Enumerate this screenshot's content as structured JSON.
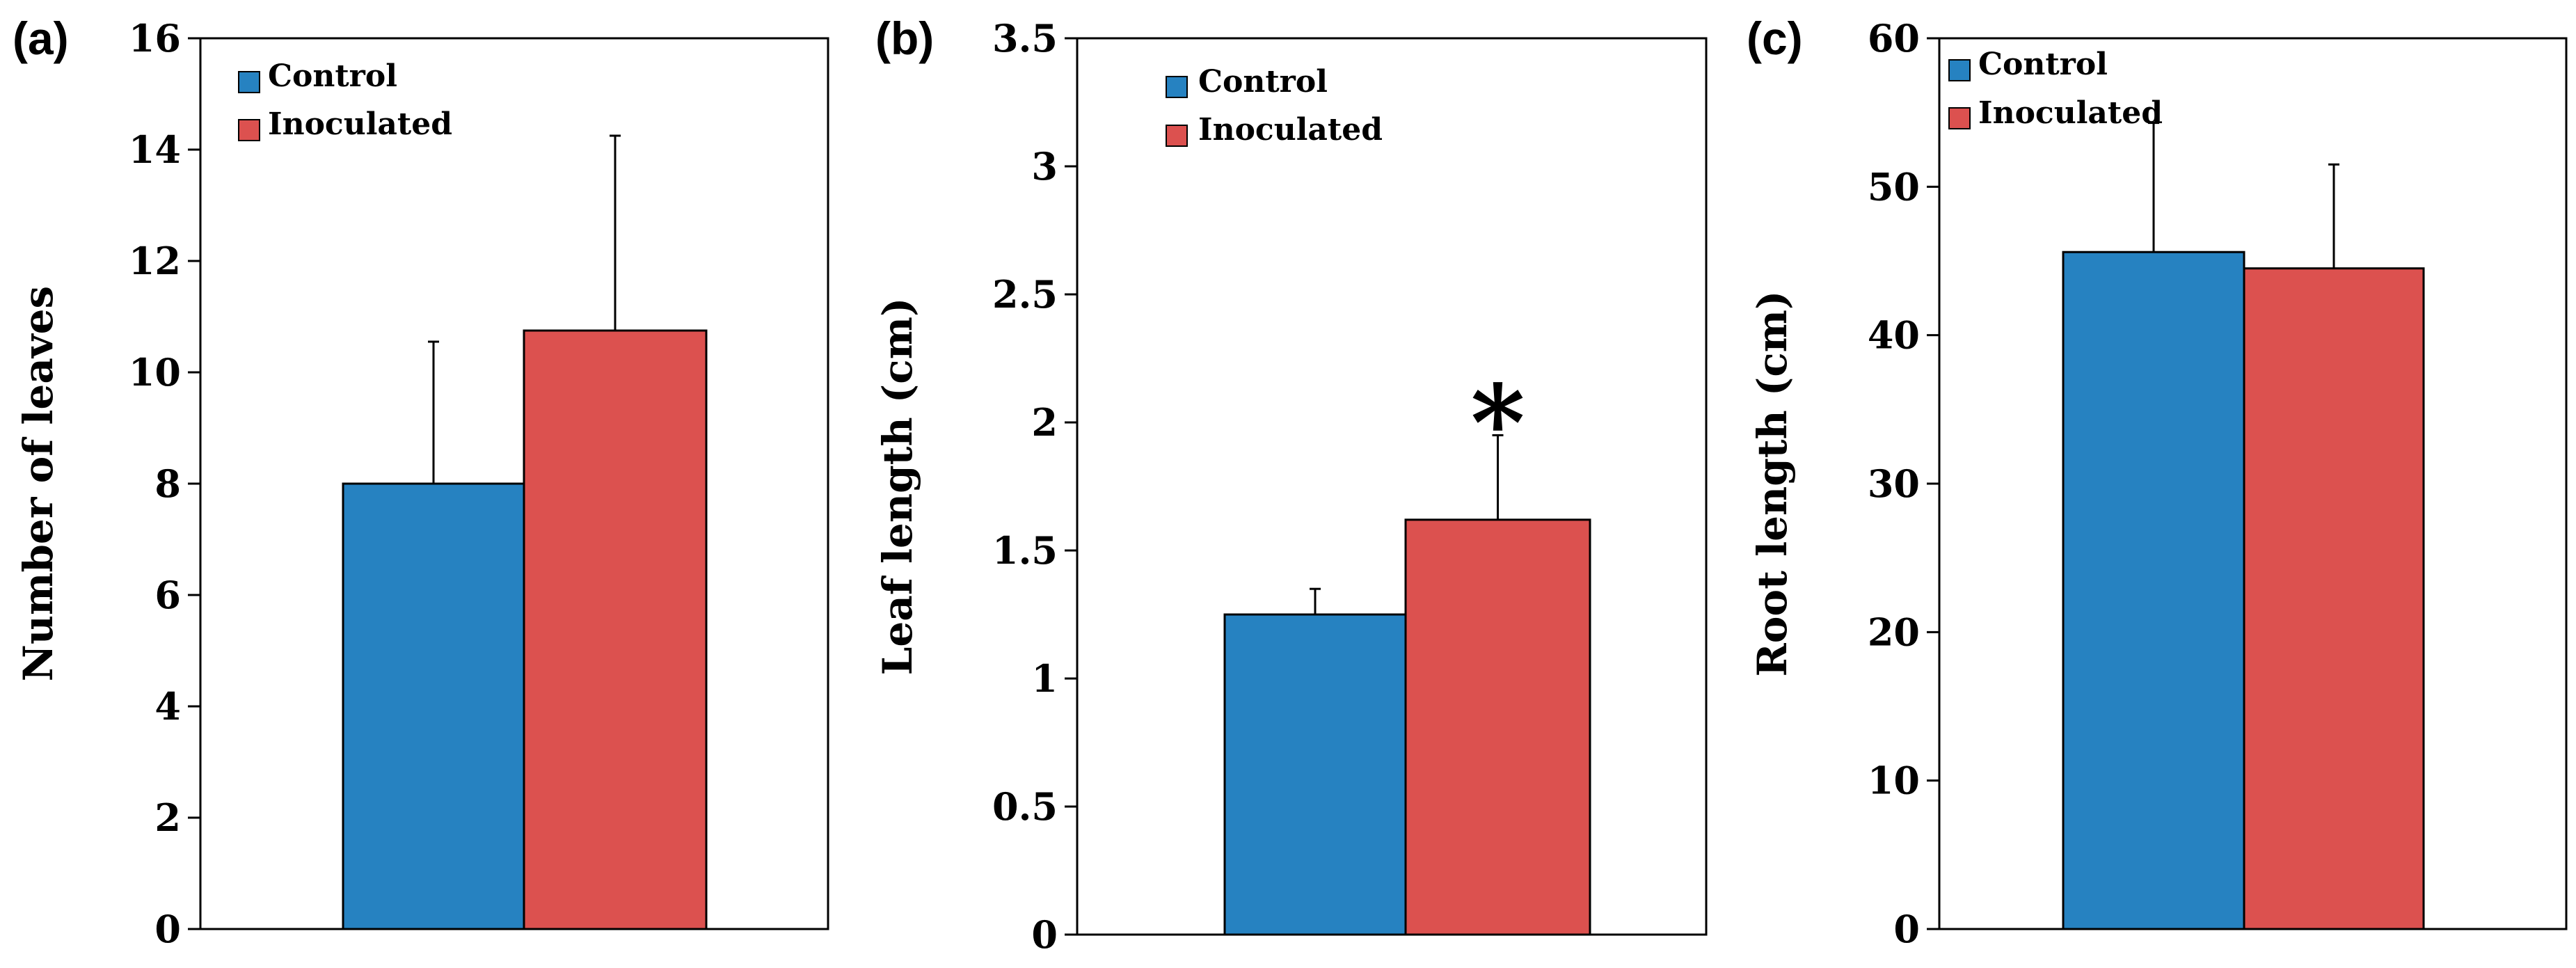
{
  "colors": {
    "control": "#2682C1",
    "inoculated": "#DC514F"
  },
  "legend": {
    "control": "Control",
    "inoculated": "Inoculated"
  },
  "chart_data": [
    {
      "type": "bar",
      "panel_label": "(a)",
      "ylabel": "Number of leaves",
      "ylim": [
        0,
        16
      ],
      "yticks": [
        0,
        2,
        4,
        6,
        8,
        10,
        12,
        14,
        16
      ],
      "ytick_labels": [
        "0",
        "2",
        "4",
        "6",
        "8",
        "10",
        "12",
        "14",
        "16"
      ],
      "series": [
        {
          "name": "Control",
          "value": 8.0,
          "error": 2.55
        },
        {
          "name": "Inoculated",
          "value": 10.75,
          "error": 3.5
        }
      ],
      "annotation": ""
    },
    {
      "type": "bar",
      "panel_label": "(b)",
      "ylabel": "Leaf  length (cm)",
      "ylim": [
        0,
        3.5
      ],
      "yticks": [
        0,
        0.5,
        1,
        1.5,
        2,
        2.5,
        3,
        3.5
      ],
      "ytick_labels": [
        "0",
        "0.5",
        "1",
        "1.5",
        "2",
        "2.5",
        "3",
        "3.5"
      ],
      "series": [
        {
          "name": "Control",
          "value": 1.25,
          "error": 0.1
        },
        {
          "name": "Inoculated",
          "value": 1.62,
          "error": 0.33
        }
      ],
      "annotation": "*"
    },
    {
      "type": "bar",
      "panel_label": "(c)",
      "ylabel": "Root length (cm)",
      "ylim": [
        0,
        60
      ],
      "yticks": [
        0,
        10,
        20,
        30,
        40,
        50,
        60
      ],
      "ytick_labels": [
        "0",
        "10",
        "20",
        "30",
        "40",
        "50",
        "60"
      ],
      "series": [
        {
          "name": "Control",
          "value": 45.6,
          "error": 8.7
        },
        {
          "name": "Inoculated",
          "value": 44.5,
          "error": 7.0
        }
      ],
      "annotation": ""
    }
  ]
}
